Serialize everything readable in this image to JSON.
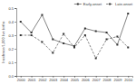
{
  "chart_data": {
    "type": "line",
    "x": [
      2000,
      2001,
      2002,
      2003,
      2004,
      2005,
      2006,
      2007,
      2008,
      2009,
      2010
    ],
    "xlim": [
      1999.6,
      2010.4
    ],
    "xticks": [
      2000,
      2001,
      2002,
      2003,
      2004,
      2005,
      2006,
      2007,
      2008,
      2009,
      2010
    ],
    "ylim": [
      0,
      0.5
    ],
    "yticks": [
      {
        "value": 0,
        "label": "0.0"
      },
      0.1,
      0.2,
      0.3,
      0.4,
      0.5
    ],
    "y_label": "Incidence/1,000 live births",
    "series": [
      {
        "name": "Early-onset",
        "color": "#333333",
        "marker": "square",
        "line_style": "solid",
        "values": [
          0.4,
          0.32,
          0.45,
          0.27,
          0.24,
          0.22,
          0.35,
          0.33,
          0.32,
          0.23,
          0.46
        ]
      },
      {
        "name": "Late-onset",
        "color": "#333333",
        "marker": "square",
        "line_style": "dashed",
        "values": [
          0.3,
          0.3,
          0.25,
          0.17,
          0.31,
          0.21,
          0.3,
          0.13,
          0.27,
          0.29,
          0.21
        ]
      }
    ],
    "legend": "upper right",
    "grid": false
  }
}
